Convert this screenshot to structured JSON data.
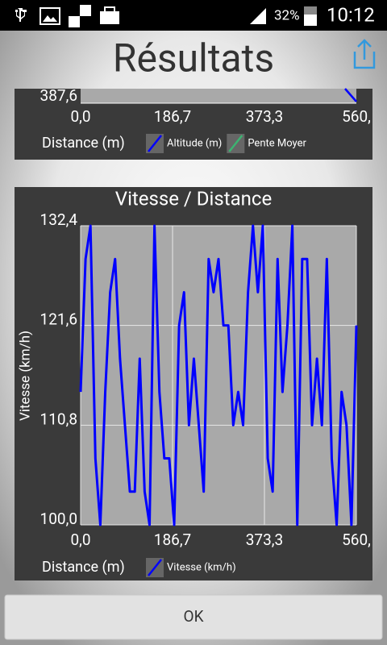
{
  "status_bar": {
    "battery": "32%",
    "time": "10:12"
  },
  "header": {
    "title": "Résultats"
  },
  "chart_data": [
    {
      "type": "line",
      "x_label": "Distance (m)",
      "xlim": [
        0,
        560
      ],
      "xticks": [
        {
          "value": 0,
          "label": "0,0"
        },
        {
          "value": 186.7,
          "label": "186,7"
        },
        {
          "value": 373.3,
          "label": "373,3"
        },
        {
          "value": 560,
          "label": "560,"
        }
      ],
      "yticks": [
        {
          "value": 387.6,
          "label": "387,6"
        }
      ],
      "series": [
        {
          "name": "Altitude (m)",
          "color": "#0000ff"
        },
        {
          "name": "Pente Moyer",
          "color": "#3cb371"
        }
      ]
    },
    {
      "type": "line",
      "title": "Vitesse / Distance",
      "x_label": "Distance (m)",
      "y_label": "Vitesse (km/h)",
      "xlim": [
        0,
        560
      ],
      "ylim": [
        100,
        132.4
      ],
      "grid": true,
      "xticks": [
        {
          "value": 0,
          "label": "0,0"
        },
        {
          "value": 186.7,
          "label": "186,7"
        },
        {
          "value": 373.3,
          "label": "373,3"
        },
        {
          "value": 560,
          "label": "560,"
        }
      ],
      "yticks": [
        {
          "value": 100,
          "label": "100,0"
        },
        {
          "value": 110.8,
          "label": "110,8"
        },
        {
          "value": 121.6,
          "label": "121,6"
        },
        {
          "value": 132.4,
          "label": "132,4"
        }
      ],
      "x": [
        0,
        10,
        20,
        30,
        40,
        50,
        60,
        70,
        80,
        90,
        100,
        110,
        120,
        130,
        140,
        150,
        160,
        170,
        180,
        190,
        200,
        210,
        220,
        230,
        240,
        250,
        260,
        270,
        280,
        290,
        300,
        310,
        320,
        330,
        340,
        350,
        360,
        370,
        380,
        390,
        400,
        410,
        420,
        430,
        440,
        450,
        460,
        470,
        480,
        490,
        500,
        510,
        520,
        530,
        540,
        550,
        560
      ],
      "series": [
        {
          "name": "Vitesse (km/h)",
          "color": "#0000ff",
          "values": [
            114.4,
            128.8,
            132.4,
            107.2,
            100,
            114.4,
            125.2,
            128.8,
            118,
            110.8,
            103.6,
            103.6,
            118,
            103.6,
            100,
            132.4,
            114.4,
            107.2,
            107.2,
            100,
            121.6,
            125.2,
            110.8,
            118,
            110.8,
            103.6,
            128.8,
            125.2,
            128.8,
            121.6,
            121.6,
            110.8,
            114.4,
            110.8,
            125.2,
            132.4,
            125.2,
            132.4,
            107.2,
            103.6,
            128.8,
            114.4,
            121.6,
            132.4,
            100,
            128.8,
            128.8,
            110.8,
            118,
            110.8,
            128.8,
            107.2,
            100,
            114.4,
            110.8,
            100,
            121.6
          ]
        }
      ]
    }
  ],
  "button": {
    "label": "OK"
  }
}
